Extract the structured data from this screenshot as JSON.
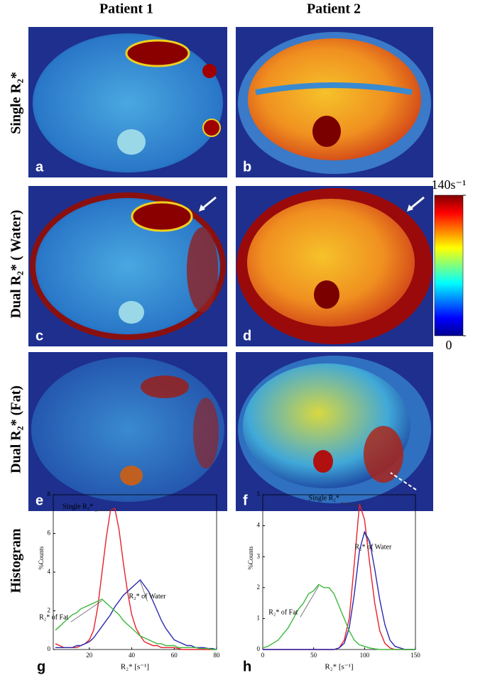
{
  "columns": [
    "Patient 1",
    "Patient 2"
  ],
  "rows": [
    "Single R₂*",
    "Dual R₂* ( Water)",
    "Dual R₂* (Fat)",
    "Histogram"
  ],
  "panels": [
    "a",
    "b",
    "c",
    "d",
    "e",
    "f"
  ],
  "colorbar": {
    "ticks": [
      0,
      {
        "value": 140,
        "label": "140s⁻¹"
      }
    ]
  },
  "chart_data": [
    {
      "type": "line",
      "panel": "g",
      "xlabel": "R₂* [s⁻¹]",
      "ylabel": "%Counts",
      "xlim": [
        3,
        80
      ],
      "xticks": [
        20,
        40,
        60,
        80
      ],
      "ylim": [
        0,
        8
      ],
      "yticks": [
        0,
        2,
        4,
        6,
        8
      ],
      "x": [
        4,
        6,
        8,
        10,
        12,
        14,
        16,
        18,
        20,
        22,
        24,
        26,
        28,
        30,
        32,
        34,
        36,
        38,
        40,
        42,
        44,
        46,
        48,
        50,
        52,
        54,
        56,
        58,
        60,
        62,
        64,
        66,
        68,
        70,
        72,
        74,
        76,
        78,
        80
      ],
      "series": [
        {
          "name": "Single R₂*",
          "color": "#e8202a",
          "values": [
            0.3,
            0.2,
            0.1,
            0.1,
            0.1,
            0.1,
            0.2,
            0.3,
            0.5,
            1.0,
            2.2,
            4.0,
            5.8,
            7.2,
            7.3,
            6.2,
            4.5,
            3.0,
            1.8,
            1.1,
            0.7,
            0.4,
            0.3,
            0.2,
            0.2,
            0.1,
            0.1,
            0.1,
            0.1,
            0.05,
            0,
            0,
            0,
            0,
            0,
            0,
            0,
            0,
            0
          ]
        },
        {
          "name": "R₂* of Water",
          "color": "#2a2ab0",
          "values": [
            0.1,
            0.1,
            0.1,
            0.1,
            0.1,
            0.2,
            0.2,
            0.3,
            0.4,
            0.6,
            0.9,
            1.2,
            1.5,
            1.8,
            2.2,
            2.5,
            2.8,
            3.0,
            3.2,
            3.4,
            3.6,
            3.3,
            3.0,
            2.5,
            2.0,
            1.5,
            1.1,
            0.8,
            0.5,
            0.4,
            0.3,
            0.2,
            0.2,
            0.1,
            0.1,
            0.1,
            0.05,
            0.05,
            0
          ]
        },
        {
          "name": "R₂* of Fat",
          "color": "#3cb83c",
          "values": [
            1.0,
            1.2,
            1.4,
            1.6,
            1.8,
            1.9,
            2.1,
            2.2,
            2.3,
            2.4,
            2.5,
            2.6,
            2.4,
            2.2,
            2.0,
            1.8,
            1.5,
            1.3,
            1.1,
            0.9,
            0.7,
            0.6,
            0.5,
            0.4,
            0.3,
            0.3,
            0.2,
            0.2,
            0.2,
            0.1,
            0.1,
            0.1,
            0.1,
            0.1,
            0.05,
            0.05,
            0.05,
            0,
            0
          ]
        }
      ]
    },
    {
      "type": "line",
      "panel": "h",
      "xlabel": "R₂* [s⁻¹]",
      "ylabel": "%Counts",
      "xlim": [
        0,
        150
      ],
      "xticks": [
        0,
        50,
        100,
        150
      ],
      "ylim": [
        0,
        5
      ],
      "yticks": [
        0,
        1,
        2,
        3,
        4,
        5
      ],
      "x": [
        0,
        5,
        10,
        15,
        20,
        25,
        30,
        35,
        40,
        45,
        50,
        55,
        60,
        65,
        70,
        75,
        80,
        85,
        90,
        95,
        100,
        105,
        110,
        115,
        120,
        125,
        130,
        135,
        140,
        145,
        150
      ],
      "series": [
        {
          "name": "Single R₂*",
          "color": "#e8202a",
          "values": [
            0,
            0,
            0,
            0,
            0,
            0,
            0,
            0,
            0,
            0,
            0,
            0,
            0,
            0,
            0,
            0.05,
            0.3,
            1.0,
            2.8,
            4.7,
            4.2,
            2.8,
            1.5,
            0.6,
            0.2,
            0.05,
            0,
            0,
            0,
            0,
            0
          ]
        },
        {
          "name": "R₂* of Water",
          "color": "#2a2ab0",
          "values": [
            0,
            0,
            0,
            0,
            0,
            0,
            0,
            0,
            0,
            0,
            0,
            0,
            0,
            0,
            0,
            0.05,
            0.2,
            0.7,
            1.8,
            3.2,
            3.8,
            3.5,
            2.6,
            1.6,
            0.8,
            0.3,
            0.1,
            0.05,
            0,
            0,
            0
          ]
        },
        {
          "name": "R₂* of Fat",
          "color": "#3cb83c",
          "values": [
            0.05,
            0.1,
            0.2,
            0.3,
            0.5,
            0.7,
            1.0,
            1.3,
            1.5,
            1.8,
            1.9,
            2.1,
            2.0,
            2.0,
            1.8,
            1.4,
            1.0,
            0.6,
            0.3,
            0.15,
            0.1,
            0.05,
            0.02,
            0,
            0,
            0,
            0,
            0,
            0,
            0,
            0
          ]
        }
      ]
    }
  ]
}
